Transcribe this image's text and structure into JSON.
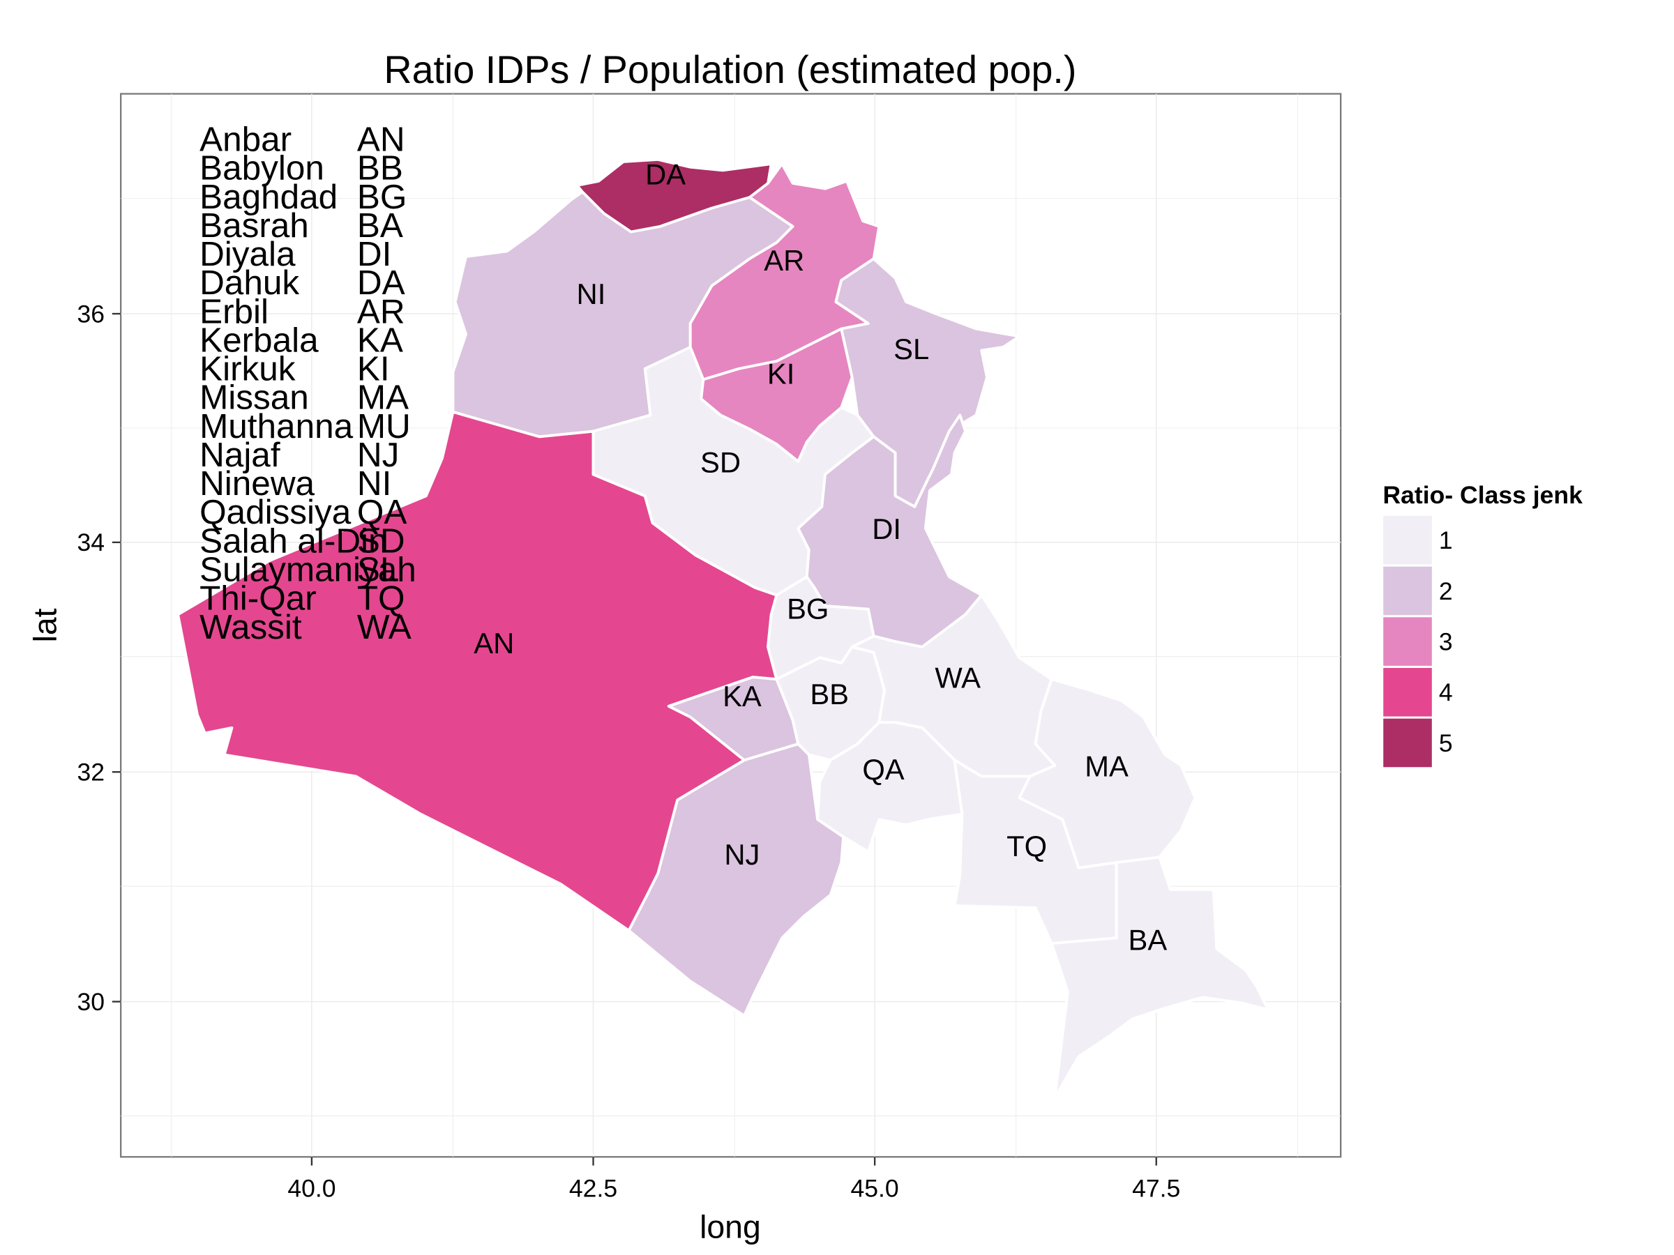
{
  "chart_data": {
    "type": "choropleth",
    "title": "Ratio IDPs / Population (estimated pop.)",
    "xlabel": "long",
    "ylabel": "lat",
    "xlim": [
      38.3,
      49.1
    ],
    "ylim": [
      28.8,
      37.85
    ],
    "x_ticks": [
      "40.0",
      "42.5",
      "45.0",
      "47.5"
    ],
    "y_ticks": [
      "30",
      "32",
      "34",
      "36"
    ],
    "grid": true,
    "legend": {
      "title": "Ratio- Class jenk",
      "placement": "right",
      "classes": [
        {
          "label": "1",
          "color": "#f1eef6"
        },
        {
          "label": "2",
          "color": "#dbc4df"
        },
        {
          "label": "3",
          "color": "#e686c0"
        },
        {
          "label": "4",
          "color": "#e4478f"
        },
        {
          "label": "5",
          "color": "#ac2e65"
        }
      ]
    },
    "key_table": [
      {
        "name": "Anbar",
        "code": "AN"
      },
      {
        "name": "Babylon",
        "code": "BB"
      },
      {
        "name": "Baghdad",
        "code": "BG"
      },
      {
        "name": "Basrah",
        "code": "BA"
      },
      {
        "name": "Diyala",
        "code": "DI"
      },
      {
        "name": "Dahuk",
        "code": "DA"
      },
      {
        "name": "Erbil",
        "code": "AR"
      },
      {
        "name": "Kerbala",
        "code": "KA"
      },
      {
        "name": "Kirkuk",
        "code": "KI"
      },
      {
        "name": "Missan",
        "code": "MA"
      },
      {
        "name": "Muthanna",
        "code": "MU"
      },
      {
        "name": "Najaf",
        "code": "NJ"
      },
      {
        "name": "Ninewa",
        "code": "NI"
      },
      {
        "name": "Qadissiya",
        "code": "QA"
      },
      {
        "name": "Salah al-Din",
        "code": "SD"
      },
      {
        "name": "Sulaymaniyah",
        "code": "SL"
      },
      {
        "name": "Thi-Qar",
        "code": "TQ"
      },
      {
        "name": "Wassit",
        "code": "WA"
      }
    ],
    "regions": [
      {
        "code": "DA",
        "class": 5
      },
      {
        "code": "AR",
        "class": 3
      },
      {
        "code": "NI",
        "class": 2
      },
      {
        "code": "KI",
        "class": 3
      },
      {
        "code": "SL",
        "class": 2
      },
      {
        "code": "SD",
        "class": 1
      },
      {
        "code": "DI",
        "class": 2
      },
      {
        "code": "BG",
        "class": 1
      },
      {
        "code": "AN",
        "class": 4
      },
      {
        "code": "KA",
        "class": 2
      },
      {
        "code": "BB",
        "class": 1
      },
      {
        "code": "WA",
        "class": 1
      },
      {
        "code": "QA",
        "class": 1
      },
      {
        "code": "MA",
        "class": 1
      },
      {
        "code": "TQ",
        "class": 1
      },
      {
        "code": "NJ",
        "class": 2
      },
      {
        "code": "BA",
        "class": 1
      }
    ]
  }
}
